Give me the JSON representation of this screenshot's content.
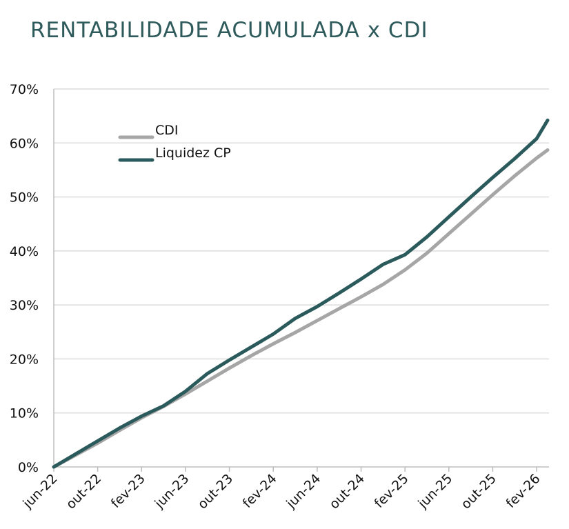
{
  "chart_data": {
    "type": "line",
    "title": "RENTABILIDADE ACUMULADA x CDI",
    "xlabel": "",
    "ylabel": "",
    "ylim": [
      0,
      70
    ],
    "yticks": [
      "0%",
      "10%",
      "20%",
      "30%",
      "40%",
      "50%",
      "60%",
      "70%"
    ],
    "xticks": [
      "jun-22",
      "out-22",
      "fev-23",
      "jun-23",
      "out-23",
      "fev-24",
      "jun-24",
      "out-24",
      "fev-25",
      "jun-25",
      "out-25",
      "fev-26"
    ],
    "x": [
      0,
      2,
      4,
      6,
      8,
      10,
      12,
      14,
      16,
      18,
      20,
      22,
      24,
      26,
      28,
      30,
      32,
      34,
      36,
      38,
      40,
      42,
      44,
      45
    ],
    "series": [
      {
        "name": "CDI",
        "color": "#a6a6a6",
        "values": [
          0,
          2.2,
          4.4,
          6.8,
          9.1,
          11.2,
          13.5,
          15.9,
          18.3,
          20.6,
          22.8,
          24.9,
          27.1,
          29.3,
          31.5,
          33.8,
          36.5,
          39.6,
          43.2,
          46.8,
          50.4,
          53.9,
          57.2,
          58.7
        ]
      },
      {
        "name": "Liquidez CP",
        "color": "#2b5a5c",
        "values": [
          0,
          2.4,
          4.8,
          7.2,
          9.4,
          11.3,
          14.0,
          17.3,
          19.8,
          22.2,
          24.6,
          27.5,
          29.7,
          32.2,
          34.8,
          37.5,
          39.3,
          42.6,
          46.3,
          50.0,
          53.6,
          57.1,
          60.8,
          64.2
        ]
      }
    ],
    "grid": true,
    "legend": "top-left"
  }
}
